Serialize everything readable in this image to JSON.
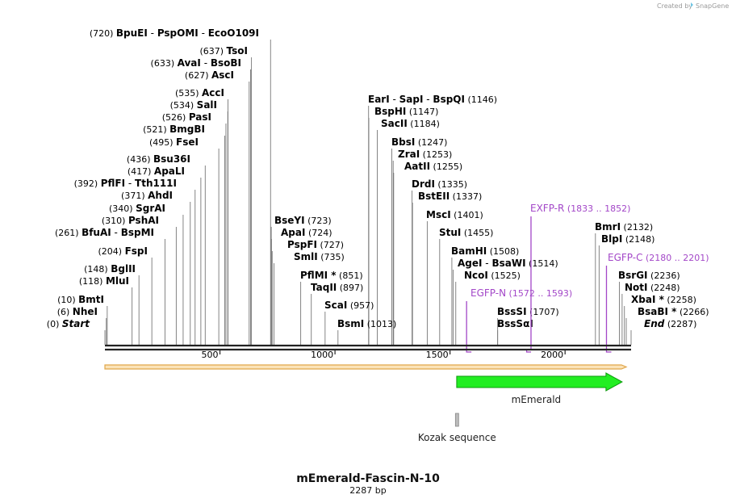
{
  "header": {
    "credit": "Created by",
    "logo_text": "SnapGene"
  },
  "map": {
    "name": "mEmerald-Fascin-N-10",
    "length_label": "2287 bp",
    "length": 2287,
    "ticks": [
      500,
      1000,
      1500,
      2000
    ]
  },
  "colors": {
    "backbone": "#222222",
    "orf_fill": "#fbe3b8",
    "orf_stroke": "#e0a64b",
    "feature_fill": "#22ee22",
    "feature_stroke": "#0d9a0d",
    "primer": "#a347c8",
    "kozak": "#888888"
  },
  "sites": [
    {
      "name": "Start",
      "pos_label": "(0)",
      "bp": 0,
      "italic": true
    },
    {
      "name": "NheI",
      "pos_label": "(6)",
      "bp": 6
    },
    {
      "name": "BmtI",
      "pos_label": "(10)",
      "bp": 10
    },
    {
      "name": "MluI",
      "pos_label": "(118)",
      "bp": 118
    },
    {
      "name": "BglII",
      "pos_label": "(148)",
      "bp": 148
    },
    {
      "name": "FspI",
      "pos_label": "(204)",
      "bp": 204
    },
    {
      "name": "BfuAI - BspMI",
      "pos_label": "(261)",
      "bp": 261
    },
    {
      "name": "PshAI",
      "pos_label": "(310)",
      "bp": 310
    },
    {
      "name": "SgrAI",
      "pos_label": "(340)",
      "bp": 340
    },
    {
      "name": "AhdI",
      "pos_label": "(371)",
      "bp": 371
    },
    {
      "name": "PflFI - Tth111I",
      "pos_label": "(392)",
      "bp": 392
    },
    {
      "name": "ApaLI",
      "pos_label": "(417)",
      "bp": 417
    },
    {
      "name": "Bsu36I",
      "pos_label": "(436)",
      "bp": 436
    },
    {
      "name": "FseI",
      "pos_label": "(495)",
      "bp": 495
    },
    {
      "name": "BmgBI",
      "pos_label": "(521)",
      "bp": 521
    },
    {
      "name": "PasI",
      "pos_label": "(526)",
      "bp": 526
    },
    {
      "name": "SalI",
      "pos_label": "(534)",
      "bp": 534
    },
    {
      "name": "AccI",
      "pos_label": "(535)",
      "bp": 535
    },
    {
      "name": "AscI",
      "pos_label": "(627)",
      "bp": 627
    },
    {
      "name": "AvaI - BsoBI",
      "pos_label": "(633)",
      "bp": 633
    },
    {
      "name": "TsoI",
      "pos_label": "(637)",
      "bp": 637
    },
    {
      "name": "BpuEI - PspOMI - EcoO109I",
      "pos_label": "(720)",
      "bp": 720
    },
    {
      "name": "BseYI",
      "pos_label": "(723)",
      "bp": 723
    },
    {
      "name": "ApaI",
      "pos_label": "(724)",
      "bp": 724
    },
    {
      "name": "PspFI",
      "pos_label": "(727)",
      "bp": 727
    },
    {
      "name": "SmlI",
      "pos_label": "(735)",
      "bp": 735
    },
    {
      "name": "PflMI *",
      "pos_label": "(851)",
      "bp": 851
    },
    {
      "name": "TaqII",
      "pos_label": "(897)",
      "bp": 897
    },
    {
      "name": "ScaI",
      "pos_label": "(957)",
      "bp": 957
    },
    {
      "name": "BsmI",
      "pos_label": "(1013)",
      "bp": 1013
    },
    {
      "name": "EarI - SapI - BspQI",
      "pos_label": "(1146)",
      "bp": 1146
    },
    {
      "name": "BspHI",
      "pos_label": "(1147)",
      "bp": 1147
    },
    {
      "name": "SacII",
      "pos_label": "(1184)",
      "bp": 1184
    },
    {
      "name": "BbsI",
      "pos_label": "(1247)",
      "bp": 1247
    },
    {
      "name": "ZraI",
      "pos_label": "(1253)",
      "bp": 1253
    },
    {
      "name": "AatII",
      "pos_label": "(1255)",
      "bp": 1255
    },
    {
      "name": "DrdI",
      "pos_label": "(1335)",
      "bp": 1335
    },
    {
      "name": "BstEII",
      "pos_label": "(1337)",
      "bp": 1337
    },
    {
      "name": "MscI",
      "pos_label": "(1401)",
      "bp": 1401
    },
    {
      "name": "StuI",
      "pos_label": "(1455)",
      "bp": 1455
    },
    {
      "name": "BamHI",
      "pos_label": "(1508)",
      "bp": 1508
    },
    {
      "name": "AgeI - BsaWI",
      "pos_label": "(1514)",
      "bp": 1514
    },
    {
      "name": "NcoI",
      "pos_label": "(1525)",
      "bp": 1525
    },
    {
      "name": "BssSI",
      "pos_label": "(1707)",
      "bp": 1707
    },
    {
      "name": "BssSαI",
      "pos_label": "",
      "bp": 1707
    },
    {
      "name": "BmrI",
      "pos_label": "(2132)",
      "bp": 2132
    },
    {
      "name": "BlpI",
      "pos_label": "(2148)",
      "bp": 2148
    },
    {
      "name": "BsrGI",
      "pos_label": "(2236)",
      "bp": 2236
    },
    {
      "name": "NotI",
      "pos_label": "(2248)",
      "bp": 2248
    },
    {
      "name": "XbaI *",
      "pos_label": "(2258)",
      "bp": 2258
    },
    {
      "name": "BsaBI *",
      "pos_label": "(2266)",
      "bp": 2266
    },
    {
      "name": "End",
      "pos_label": "(2287)",
      "bp": 2287,
      "italic": true
    }
  ],
  "primers": [
    {
      "name": "EGFP-N",
      "range": "(1572 .. 1593)",
      "start": 1572,
      "end": 1593,
      "direction": "forward"
    },
    {
      "name": "EXFP-R",
      "range": "(1833 .. 1852)",
      "start": 1833,
      "end": 1852,
      "direction": "reverse"
    },
    {
      "name": "EGFP-C",
      "range": "(2180 .. 2201)",
      "start": 2180,
      "end": 2201,
      "direction": "forward"
    }
  ],
  "features": [
    {
      "name": "mEmerald",
      "start": 1529,
      "end": 2248,
      "type": "arrow"
    },
    {
      "name": "Kozak sequence",
      "start": 1519,
      "end": 1528,
      "type": "box"
    }
  ],
  "orf": {
    "start": 0,
    "end": 2287
  }
}
